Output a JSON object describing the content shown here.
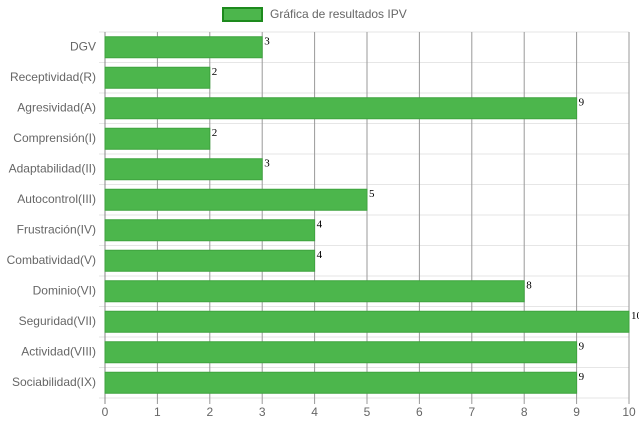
{
  "chart_data": {
    "type": "bar",
    "orientation": "horizontal",
    "categories": [
      "DGV",
      "Receptividad(R)",
      "Agresividad(A)",
      "Comprensión(I)",
      "Adaptabilidad(II)",
      "Autocontrol(III)",
      "Frustración(IV)",
      "Combatividad(V)",
      "Dominio(VI)",
      "Seguridad(VII)",
      "Actividad(VIII)",
      "Sociabilidad(IX)"
    ],
    "series": [
      {
        "name": "Gráfica de resultados IPV",
        "color": "#4cb64c",
        "values": [
          3,
          2,
          9,
          2,
          3,
          5,
          4,
          4,
          8,
          10,
          9,
          9
        ]
      }
    ],
    "xlim": [
      0,
      10
    ],
    "xticks": [
      0,
      1,
      2,
      3,
      4,
      5,
      6,
      7,
      8,
      9,
      10
    ],
    "grid": true,
    "legend": "top"
  }
}
